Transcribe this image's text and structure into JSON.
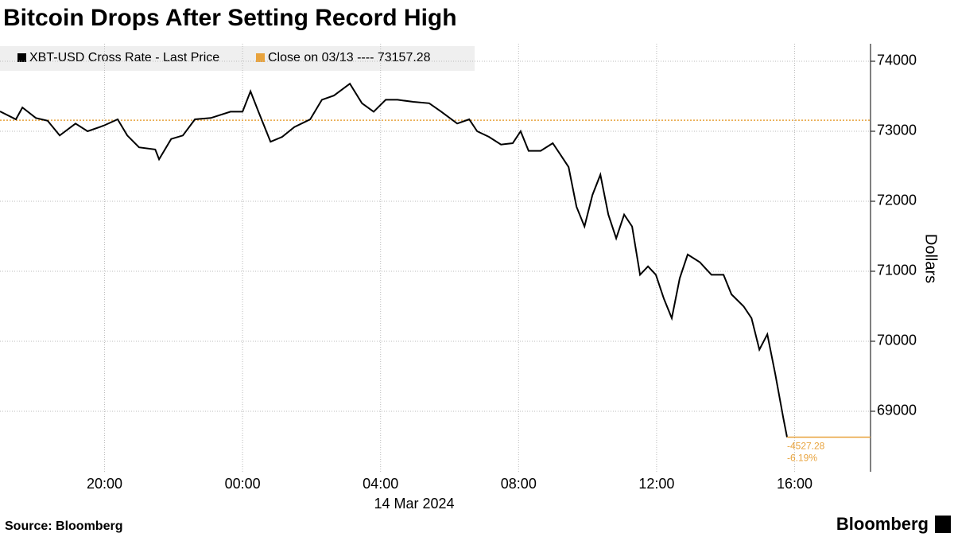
{
  "chart_data": {
    "type": "line",
    "title": "Bitcoin Drops After Setting Record High",
    "y_label": "Dollars",
    "x_sublabel": "14 Mar 2024",
    "source": "Source: Bloomberg",
    "brand": "Bloomberg",
    "x": [
      -7.03,
      -6.57,
      -6.38,
      -5.99,
      -5.65,
      -5.3,
      -4.84,
      -4.49,
      -4.03,
      -3.62,
      -3.34,
      -3.0,
      -2.53,
      -2.42,
      -2.07,
      -1.73,
      -1.38,
      -0.92,
      -0.35,
      0,
      0.23,
      0.46,
      0.81,
      1.15,
      1.5,
      1.96,
      2.3,
      2.65,
      3.11,
      3.46,
      3.8,
      4.15,
      4.49,
      4.95,
      5.41,
      5.76,
      6.22,
      6.57,
      6.8,
      7.14,
      7.49,
      7.83,
      8.06,
      8.29,
      8.64,
      8.99,
      9.22,
      9.45,
      9.68,
      9.91,
      10.14,
      10.37,
      10.6,
      10.83,
      11.06,
      11.29,
      11.52,
      11.75,
      11.98,
      12.21,
      12.44,
      12.67,
      12.9,
      13.25,
      13.59,
      13.94,
      14.17,
      14.52,
      14.75,
      14.98,
      15.21,
      15.44,
      15.67,
      15.78
    ],
    "series": [
      {
        "name": "XBT-USD Cross Rate - Last Price",
        "color": "#000000",
        "values": [
          73284,
          73170,
          73340,
          73190,
          73150,
          72940,
          73110,
          73000,
          73080,
          73170,
          72940,
          72770,
          72740,
          72600,
          72890,
          72940,
          73170,
          73190,
          73280,
          73280,
          73570,
          73280,
          72850,
          72920,
          73060,
          73170,
          73450,
          73510,
          73680,
          73400,
          73280,
          73450,
          73450,
          73420,
          73400,
          73280,
          73110,
          73170,
          73000,
          72920,
          72810,
          72830,
          73000,
          72720,
          72720,
          72830,
          72660,
          72490,
          71920,
          71640,
          72090,
          72380,
          71810,
          71470,
          71810,
          71640,
          70950,
          71070,
          70950,
          70610,
          70330,
          70900,
          71240,
          71130,
          70950,
          70950,
          70670,
          70500,
          70330,
          69880,
          70100,
          69530,
          68910,
          68630
        ]
      }
    ],
    "reference_line": {
      "name": "Close on 03/13 ----",
      "value": 73157.28,
      "color": "#e8a33d"
    },
    "change": -4527.28,
    "change_pct": {
      "value": -6.19,
      "label": "-6.19%"
    },
    "xlim": [
      -7.03,
      18.2
    ],
    "xticks": [
      {
        "value": -4,
        "label": "20:00"
      },
      {
        "value": 0,
        "label": "00:00"
      },
      {
        "value": 4,
        "label": "04:00"
      },
      {
        "value": 8,
        "label": "08:00"
      },
      {
        "value": 12,
        "label": "12:00"
      },
      {
        "value": 16,
        "label": "16:00"
      }
    ],
    "ylim": [
      68136,
      74250
    ],
    "yticks": [
      69000,
      70000,
      71000,
      72000,
      73000,
      74000
    ],
    "grid": true
  }
}
